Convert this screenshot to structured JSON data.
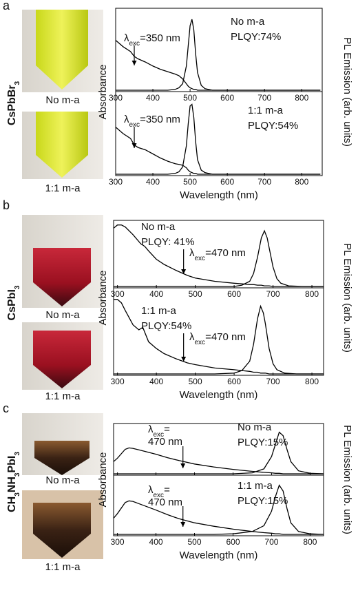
{
  "panels": [
    {
      "letter": "a",
      "compound": [
        "CsPbBr",
        "3"
      ],
      "photo_captions": [
        "No m-a",
        "1:1 m-a"
      ],
      "y_label": "Absorbance",
      "y2_label": "PL Emission (arb. units)",
      "x_label": "Wavelength (nm)"
    },
    {
      "letter": "b",
      "compound": [
        "CsPbI",
        "3"
      ],
      "photo_captions": [
        "No m-a",
        "1:1 m-a"
      ],
      "y_label": "Absorbance",
      "y2_label": "PL Emission (arb. units)",
      "x_label": "Wavelength (nm)"
    },
    {
      "letter": "c",
      "compound": [
        "CH",
        "3",
        "NH",
        "3",
        "PbI",
        "3"
      ],
      "photo_captions": [
        "No m-a",
        "1:1 m-a"
      ],
      "y_label": "Absorbance",
      "y2_label": "PL Emission (arb. units)",
      "x_label": "Wavelength (nm)"
    }
  ],
  "chart_data": [
    {
      "type": "line",
      "xlim": [
        300,
        855
      ],
      "xticks": [
        300,
        400,
        500,
        600,
        700,
        800
      ],
      "ylim": [
        0,
        1
      ],
      "tick_labels": true,
      "x": [
        300,
        320,
        340,
        350,
        360,
        380,
        400,
        420,
        440,
        460,
        470,
        480,
        490,
        495,
        500,
        505,
        510,
        515,
        520,
        530,
        540,
        560,
        600,
        700,
        850
      ],
      "series": [
        {
          "color": "#000000",
          "values": [
            0.62,
            0.54,
            0.48,
            0.42,
            0.39,
            0.35,
            0.3,
            0.26,
            0.23,
            0.2,
            0.18,
            0.14,
            0.08,
            0.05,
            0.03,
            0.02,
            0.01,
            0.01,
            0,
            0,
            0,
            0,
            0,
            0,
            0
          ]
        },
        {
          "color": "#000000",
          "values": [
            0,
            0,
            0,
            0,
            0,
            0,
            0,
            0,
            0,
            0.01,
            0.03,
            0.08,
            0.3,
            0.55,
            0.8,
            0.88,
            0.75,
            0.45,
            0.22,
            0.06,
            0.02,
            0,
            0,
            0,
            0
          ]
        }
      ],
      "sample": "No m-a",
      "plqy": "PLQY:74%",
      "excitation": {
        "symbol": "λ",
        "subscript": "exc",
        "lines": [
          "=350 nm"
        ],
        "x": 350
      }
    },
    {
      "type": "line",
      "xlim": [
        300,
        855
      ],
      "xticks": [
        300,
        400,
        500,
        600,
        700,
        800
      ],
      "ylim": [
        0,
        1
      ],
      "tick_labels": true,
      "x": [
        300,
        320,
        340,
        350,
        360,
        380,
        400,
        420,
        440,
        460,
        470,
        480,
        490,
        495,
        500,
        505,
        510,
        515,
        520,
        530,
        540,
        560,
        600,
        700,
        850
      ],
      "series": [
        {
          "color": "#000000",
          "values": [
            0.58,
            0.5,
            0.44,
            0.36,
            0.33,
            0.3,
            0.25,
            0.2,
            0.16,
            0.13,
            0.12,
            0.11,
            0.08,
            0.05,
            0.03,
            0.02,
            0.01,
            0.01,
            0,
            0,
            0,
            0,
            0,
            0,
            0
          ]
        },
        {
          "color": "#000000",
          "values": [
            0,
            0,
            0,
            0,
            0,
            0,
            0,
            0,
            0,
            0.01,
            0.03,
            0.09,
            0.35,
            0.62,
            0.84,
            0.86,
            0.7,
            0.4,
            0.18,
            0.05,
            0.02,
            0,
            0,
            0,
            0
          ]
        }
      ],
      "sample": "1:1 m-a",
      "plqy": "PLQY:54%",
      "excitation": {
        "symbol": "λ",
        "subscript": "exc",
        "lines": [
          "=350 nm"
        ],
        "x": 350
      }
    },
    {
      "type": "line",
      "xlim": [
        290,
        830
      ],
      "xticks": [
        300,
        400,
        500,
        600,
        700,
        800
      ],
      "ylim": [
        0,
        1
      ],
      "tick_labels": true,
      "x": [
        290,
        300,
        310,
        320,
        340,
        360,
        370,
        380,
        400,
        420,
        450,
        480,
        500,
        550,
        600,
        620,
        640,
        650,
        660,
        670,
        678,
        685,
        690,
        700,
        710,
        720,
        740,
        780,
        830
      ],
      "series": [
        {
          "color": "#000000",
          "values": [
            0.9,
            0.95,
            0.95,
            0.92,
            0.8,
            0.66,
            0.62,
            0.55,
            0.42,
            0.34,
            0.25,
            0.17,
            0.13,
            0.08,
            0.05,
            0.04,
            0.03,
            0.03,
            0.02,
            0.02,
            0.01,
            0.01,
            0.01,
            0,
            0,
            0,
            0,
            0,
            0
          ]
        },
        {
          "color": "#000000",
          "values": [
            0,
            0,
            0,
            0,
            0,
            0,
            0,
            0,
            0,
            0,
            0,
            0,
            0,
            0,
            0,
            0.02,
            0.08,
            0.2,
            0.45,
            0.75,
            0.86,
            0.75,
            0.6,
            0.3,
            0.12,
            0.05,
            0.01,
            0,
            0
          ]
        }
      ],
      "sample": "No m-a",
      "plqy": "PLQY: 41%",
      "excitation": {
        "symbol": "λ",
        "subscript": "exc",
        "lines": [
          "=470 nm"
        ],
        "x": 470
      }
    },
    {
      "type": "line",
      "xlim": [
        290,
        830
      ],
      "xticks": [
        300,
        400,
        500,
        600,
        700,
        800
      ],
      "ylim": [
        0,
        1
      ],
      "tick_labels": true,
      "x": [
        290,
        300,
        310,
        320,
        340,
        355,
        365,
        380,
        400,
        420,
        450,
        480,
        500,
        550,
        600,
        620,
        640,
        650,
        660,
        668,
        675,
        680,
        690,
        700,
        710,
        730,
        760,
        830
      ],
      "series": [
        {
          "color": "#000000",
          "values": [
            0.88,
            0.88,
            0.84,
            0.75,
            0.58,
            0.52,
            0.55,
            0.38,
            0.3,
            0.24,
            0.18,
            0.13,
            0.11,
            0.07,
            0.05,
            0.04,
            0.03,
            0.02,
            0.02,
            0.01,
            0.01,
            0.01,
            0,
            0,
            0,
            0,
            0,
            0
          ]
        },
        {
          "color": "#000000",
          "values": [
            0,
            0,
            0,
            0,
            0,
            0,
            0,
            0,
            0,
            0,
            0,
            0,
            0,
            0,
            0.01,
            0.04,
            0.15,
            0.35,
            0.65,
            0.8,
            0.72,
            0.6,
            0.3,
            0.12,
            0.05,
            0.01,
            0,
            0
          ]
        }
      ],
      "sample": "1:1 m-a",
      "plqy": "PLQY:54%",
      "excitation": {
        "symbol": "λ",
        "subscript": "exc",
        "lines": [
          "=470 nm"
        ],
        "x": 470
      }
    },
    {
      "type": "line",
      "xlim": [
        290,
        835
      ],
      "xticks": [
        300,
        400,
        500,
        600,
        700,
        800
      ],
      "ylim": [
        0,
        1
      ],
      "tick_labels": false,
      "x": [
        290,
        300,
        320,
        330,
        340,
        360,
        400,
        430,
        460,
        500,
        550,
        600,
        650,
        680,
        700,
        710,
        720,
        730,
        740,
        750,
        770,
        800,
        835
      ],
      "series": [
        {
          "color": "#000000",
          "values": [
            0.25,
            0.32,
            0.5,
            0.53,
            0.52,
            0.48,
            0.4,
            0.33,
            0.27,
            0.2,
            0.14,
            0.09,
            0.05,
            0.03,
            0.02,
            0.01,
            0.01,
            0,
            0,
            0,
            0,
            0,
            0
          ]
        },
        {
          "color": "#000000",
          "values": [
            0,
            0,
            0,
            0,
            0,
            0,
            0,
            0,
            0,
            0,
            0,
            0,
            0.02,
            0.1,
            0.35,
            0.6,
            0.85,
            0.78,
            0.5,
            0.25,
            0.06,
            0.01,
            0
          ]
        }
      ],
      "sample": "No m-a",
      "plqy": "PLQY:15%",
      "excitation": {
        "symbol": "λ",
        "subscript": "exc",
        "lines": [
          "=",
          "470 nm"
        ],
        "x": 470
      }
    },
    {
      "type": "line",
      "xlim": [
        290,
        835
      ],
      "xticks": [
        300,
        400,
        500,
        600,
        700,
        800
      ],
      "ylim": [
        0,
        1
      ],
      "tick_labels": true,
      "x": [
        290,
        300,
        320,
        330,
        340,
        360,
        400,
        430,
        460,
        500,
        550,
        600,
        650,
        680,
        700,
        710,
        720,
        730,
        740,
        750,
        770,
        800,
        835
      ],
      "series": [
        {
          "color": "#000000",
          "values": [
            0.28,
            0.36,
            0.55,
            0.58,
            0.57,
            0.52,
            0.42,
            0.34,
            0.27,
            0.2,
            0.14,
            0.09,
            0.05,
            0.03,
            0.02,
            0.01,
            0.01,
            0,
            0,
            0,
            0,
            0,
            0
          ]
        },
        {
          "color": "#000000",
          "values": [
            0,
            0,
            0,
            0,
            0,
            0,
            0,
            0,
            0,
            0,
            0,
            0.01,
            0.05,
            0.15,
            0.4,
            0.65,
            0.85,
            0.75,
            0.45,
            0.2,
            0.05,
            0.01,
            0
          ]
        }
      ],
      "sample": "1:1 m-a",
      "plqy": "PLQY:15%",
      "excitation": {
        "symbol": "λ",
        "subscript": "exc",
        "lines": [
          "=",
          "470 nm"
        ],
        "x": 470
      }
    }
  ]
}
